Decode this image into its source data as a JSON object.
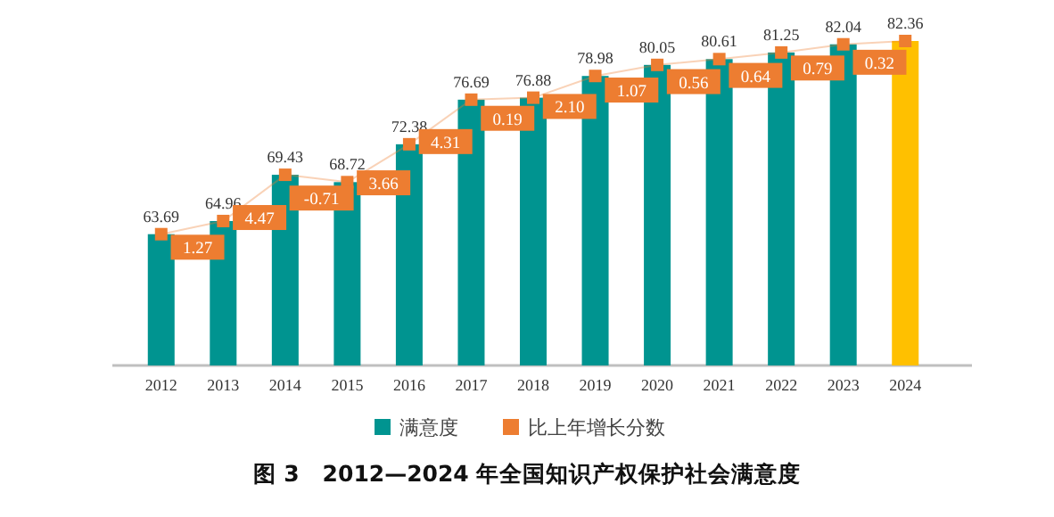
{
  "chart_data": {
    "type": "bar",
    "title": "图 3　2012—2024 年全国知识产权保护社会满意度",
    "categories": [
      "2012",
      "2013",
      "2014",
      "2015",
      "2016",
      "2017",
      "2018",
      "2019",
      "2020",
      "2021",
      "2022",
      "2023",
      "2024"
    ],
    "ylim": [
      51,
      82.36
    ],
    "legend": "bottom",
    "series": [
      {
        "name": "满意度",
        "color": "#009490",
        "colors": [
          "#009490",
          "#009490",
          "#009490",
          "#009490",
          "#009490",
          "#009490",
          "#009490",
          "#009490",
          "#009490",
          "#009490",
          "#009490",
          "#009490",
          "#ffc000"
        ],
        "values": [
          63.69,
          64.96,
          69.43,
          68.72,
          72.38,
          76.69,
          76.88,
          78.98,
          80.05,
          80.61,
          81.25,
          82.04,
          82.36
        ],
        "value_labels": [
          "63.69",
          "64.96",
          "69.43",
          "68.72",
          "72.38",
          "76.69",
          "76.88",
          "78.98",
          "80.05",
          "80.61",
          "81.25",
          "82.04",
          "82.36"
        ]
      },
      {
        "type": "line",
        "color": "#ed7d31",
        "marker": "square",
        "values": [
          63.69,
          64.96,
          69.43,
          68.72,
          72.38,
          76.69,
          76.88,
          78.98,
          80.05,
          80.61,
          81.25,
          82.04,
          82.36
        ]
      },
      {
        "name": "比上年增长分数",
        "type": "other",
        "color": "#ed7d31",
        "values": [
          null,
          null,
          null,
          null,
          null,
          null,
          null,
          null,
          null,
          null,
          null,
          null,
          null
        ],
        "value_labels": [
          null,
          "1.27",
          "4.47",
          "-0.71",
          "3.66",
          "4.31",
          "0.19",
          "2.10",
          "1.07",
          "0.56",
          "0.64",
          "0.79",
          "0.32"
        ]
      }
    ]
  }
}
